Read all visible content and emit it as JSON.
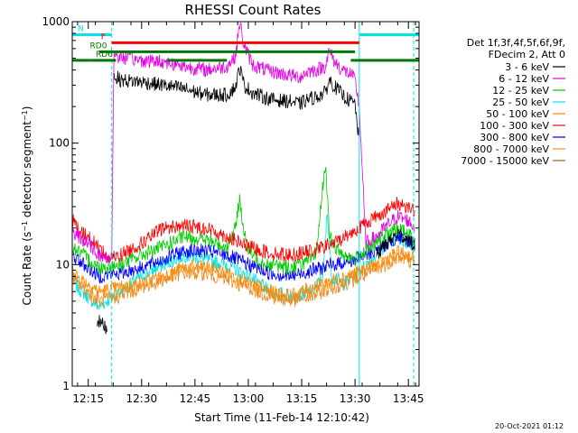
{
  "chart_data": {
    "type": "line",
    "title": "RHESSI Count Rates",
    "xlabel": "Start Time (11-Feb-14 12:10:42)",
    "ylabel": "Count Rate (s^-1 detector segment^-1)",
    "ylabel_parts": {
      "a": "Count Rate (s",
      "b": "−1",
      "c": " detector segment",
      "d": "−1",
      "e": ")"
    },
    "y_scale": "log",
    "ylim": [
      1,
      1000
    ],
    "y_ticks": [
      "1",
      "10",
      "100",
      "1000"
    ],
    "xlim": [
      12.175,
      13.8
    ],
    "x_ticks": [
      {
        "value": 12.25,
        "label": "12:15"
      },
      {
        "value": 12.5,
        "label": "12:30"
      },
      {
        "value": 12.75,
        "label": "12:45"
      },
      {
        "value": 13.0,
        "label": "13:00"
      },
      {
        "value": 13.25,
        "label": "13:15"
      },
      {
        "value": 13.5,
        "label": "13:30"
      },
      {
        "value": 13.75,
        "label": "13:45"
      }
    ],
    "legend": {
      "placement": "right",
      "header": [
        "Det 1f,3f,4f,5f,6f,9f,",
        "FDecim 2, Att 0"
      ]
    },
    "series": [
      {
        "name": "3 - 6 keV",
        "color": "#000000",
        "x": [
          12.175,
          12.2,
          12.25,
          12.29,
          12.34,
          12.36,
          12.37,
          12.4,
          12.5,
          12.6,
          12.7,
          12.8,
          12.9,
          12.94,
          12.96,
          12.98,
          13.02,
          13.1,
          13.2,
          13.24,
          13.28,
          13.32,
          13.36,
          13.38,
          13.4,
          13.44,
          13.48,
          13.5,
          13.52,
          13.55,
          13.6,
          13.65,
          13.7,
          13.75,
          13.78
        ],
        "values": [
          null,
          null,
          null,
          3.5,
          3.0,
          null,
          360,
          330,
          320,
          300,
          280,
          250,
          250,
          290,
          420,
          300,
          260,
          230,
          220,
          210,
          230,
          240,
          260,
          330,
          300,
          250,
          220,
          210,
          100,
          null,
          12,
          15,
          18,
          16,
          14
        ]
      },
      {
        "name": "6 - 12 keV",
        "color": "#e600e6",
        "x": [
          12.175,
          12.2,
          12.25,
          12.3,
          12.34,
          12.36,
          12.37,
          12.4,
          12.5,
          12.6,
          12.7,
          12.8,
          12.9,
          12.94,
          12.96,
          12.98,
          13.02,
          13.1,
          13.2,
          13.24,
          13.28,
          13.32,
          13.36,
          13.38,
          13.4,
          13.44,
          13.48,
          13.5,
          13.52,
          13.55,
          13.6,
          13.65,
          13.7,
          13.75,
          13.78
        ],
        "values": [
          18,
          17,
          15,
          12,
          11,
          12,
          540,
          510,
          480,
          470,
          430,
          400,
          430,
          520,
          980,
          640,
          440,
          390,
          360,
          350,
          390,
          400,
          430,
          580,
          480,
          400,
          370,
          330,
          200,
          15,
          17,
          21,
          25,
          23,
          20
        ]
      },
      {
        "name": "12 - 25 keV",
        "color": "#00cc00",
        "x": [
          12.175,
          12.2,
          12.3,
          12.4,
          12.5,
          12.6,
          12.7,
          12.8,
          12.9,
          12.94,
          12.96,
          12.98,
          13.0,
          13.05,
          13.1,
          13.2,
          13.3,
          13.32,
          13.36,
          13.38,
          13.4,
          13.45,
          13.5,
          13.55,
          13.6,
          13.65,
          13.7,
          13.75,
          13.78
        ],
        "values": [
          14,
          13,
          9.5,
          10,
          12,
          14,
          17,
          16,
          14,
          20,
          36,
          18,
          13,
          11,
          10,
          9.5,
          11,
          13,
          70,
          18,
          14,
          12,
          11,
          13,
          15,
          18,
          20,
          18,
          16
        ]
      },
      {
        "name": "25 - 50 keV",
        "color": "#00e5e5",
        "x": [
          12.175,
          12.2,
          12.3,
          12.4,
          12.5,
          12.6,
          12.7,
          12.8,
          12.9,
          13.0,
          13.1,
          13.2,
          13.3,
          13.35,
          13.37,
          13.39,
          13.45,
          13.5,
          13.55,
          13.6,
          13.65,
          13.7,
          13.75,
          13.78
        ],
        "values": [
          8,
          6.5,
          4.5,
          6,
          8,
          10,
          12,
          11,
          10,
          8,
          6,
          5.5,
          6,
          8,
          28,
          8,
          7,
          8,
          10,
          12,
          15,
          17,
          15,
          13
        ]
      },
      {
        "name": "50 - 100 keV",
        "color": "#ff8800",
        "x": [
          12.175,
          12.2,
          12.3,
          12.4,
          12.5,
          12.6,
          12.7,
          12.8,
          12.9,
          13.0,
          13.1,
          13.2,
          13.3,
          13.4,
          13.5,
          13.6,
          13.7,
          13.75,
          13.78
        ],
        "values": [
          9,
          8,
          6,
          6.5,
          7,
          8,
          9.5,
          9.5,
          8.5,
          7,
          6,
          5.5,
          6.5,
          7.5,
          8.5,
          10,
          12.5,
          12,
          11
        ]
      },
      {
        "name": "100 - 300 keV",
        "color": "#ff0000",
        "x": [
          12.175,
          12.2,
          12.3,
          12.35,
          12.4,
          12.5,
          12.6,
          12.7,
          12.8,
          12.9,
          13.0,
          13.1,
          13.2,
          13.3,
          13.4,
          13.5,
          13.55,
          13.6,
          13.65,
          13.7,
          13.75,
          13.78
        ],
        "values": [
          24,
          20,
          14,
          11,
          12,
          15,
          20,
          21,
          20,
          17,
          14,
          12.5,
          12,
          13,
          15,
          19,
          22,
          25,
          28,
          32,
          30,
          28
        ]
      },
      {
        "name": "300 - 800 keV",
        "color": "#0000ff",
        "x": [
          12.175,
          12.2,
          12.3,
          12.4,
          12.5,
          12.6,
          12.7,
          12.8,
          12.9,
          13.0,
          13.1,
          13.2,
          13.3,
          13.4,
          13.5,
          13.6,
          13.7,
          13.75,
          13.78
        ],
        "values": [
          12,
          11,
          8,
          8.5,
          9.5,
          11,
          13,
          13,
          12,
          10,
          8.5,
          8,
          9,
          10,
          11,
          13,
          17,
          16,
          15
        ]
      },
      {
        "name": "800 - 7000 keV",
        "color": "#f28c1e",
        "x": [
          12.175,
          12.2,
          12.3,
          12.4,
          12.5,
          12.6,
          12.7,
          12.8,
          12.9,
          13.0,
          13.1,
          13.2,
          13.3,
          13.4,
          13.5,
          13.6,
          13.7,
          13.75,
          13.78
        ],
        "values": [
          8,
          7,
          5,
          5.5,
          6.5,
          7.5,
          8.5,
          8.5,
          7.5,
          6.5,
          5.5,
          5,
          5.5,
          6.5,
          7.5,
          9,
          11.5,
          11,
          10
        ]
      },
      {
        "name": "7000 - 15000 keV",
        "color": "#8b6914",
        "x": [],
        "values": []
      }
    ],
    "annotations": [
      {
        "label": "N",
        "color": "#00e5e5",
        "segments": [
          [
            12.175,
            12.36
          ],
          [
            13.52,
            13.8
          ]
        ],
        "level": 780
      },
      {
        "label": "F",
        "color": "#ff0000",
        "segments": [
          [
            12.36,
            13.52
          ]
        ],
        "level": 670
      },
      {
        "label": "RD0",
        "color": "#007700",
        "segments": [
          [
            12.3,
            12.62
          ],
          [
            12.62,
            13.5
          ]
        ],
        "level": 565
      },
      {
        "label": "RD6",
        "color": "#007700",
        "segments": [
          [
            12.175,
            12.26
          ],
          [
            12.26,
            12.38
          ],
          [
            12.62,
            12.9
          ],
          [
            13.48,
            13.8
          ]
        ],
        "level": 480
      }
    ],
    "vertical_markers": [
      {
        "x": 12.175,
        "color": "#00e5e5",
        "style": "solid"
      },
      {
        "x": 12.36,
        "color": "#00e5e5",
        "style": "dashed"
      },
      {
        "x": 13.52,
        "color": "#00e5e5",
        "style": "solid"
      },
      {
        "x": 13.775,
        "color": "#00e5e5",
        "style": "dashed"
      }
    ]
  },
  "footer": {
    "timestamp": "20-Oct-2021 01:12"
  }
}
